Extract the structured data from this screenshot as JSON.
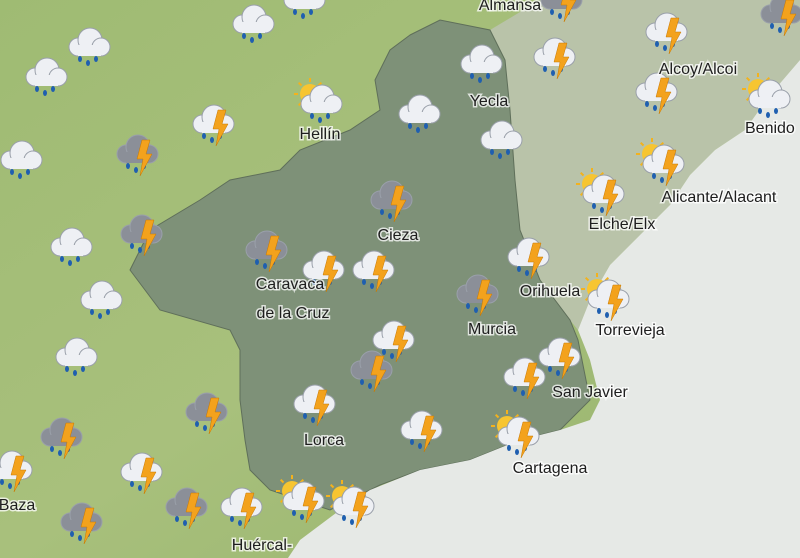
{
  "places": [
    "Almansa",
    "Yecla",
    "Alcoy/Alcoi",
    "Benido",
    "Hellín",
    "Cieza",
    "Alicante/Alacant",
    "Elche/Elx",
    "Caravaca",
    "de la Cruz",
    "Orihuela",
    "Torrevieja",
    "Murcia",
    "San Javier",
    "Lorca",
    "Cartagena",
    "Baza",
    "Huércal-"
  ]
}
